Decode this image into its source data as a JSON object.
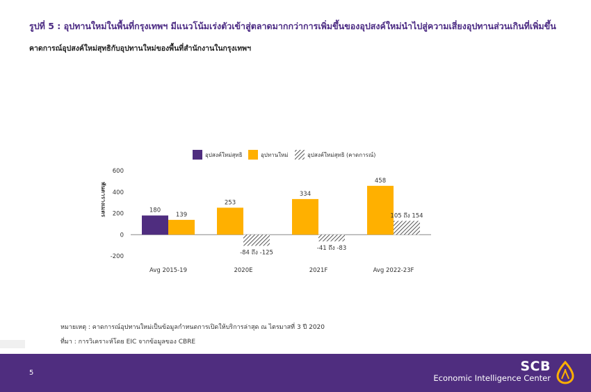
{
  "header": {
    "title": "รูปที่ 5 : อุปทานใหม่ในพื้นที่กรุงเทพฯ มีแนวโน้มเร่งตัวเข้าสู่ตลาดมากกว่าการเพิ่มขึ้นของอุปสงค์ใหม่นำไปสู่ความเสี่ยงอุปทานส่วนเกินที่เพิ่มขึ้น",
    "subtitle": "คาดการณ์อุปสงค์ใหม่สุทธิกับอุปทานใหม่ของพื้นที่สำนักงานในกรุงเทพฯ"
  },
  "chart_data": {
    "type": "bar",
    "categories": [
      "Avg 2015-19",
      "2020E",
      "2021F",
      "Avg 2022-23F"
    ],
    "ylabel": "พันตารางเมตร",
    "ylim": [
      -200,
      600
    ],
    "yticks": [
      -200,
      0,
      200,
      400,
      600
    ],
    "legend_position": "top",
    "legend": [
      "อุปสงค์ใหม่สุทธิ",
      "อุปทานใหม่",
      "อุปสงค์ใหม่สุทธิ (คาดการณ์)"
    ],
    "series": [
      {
        "name": "อุปสงค์ใหม่สุทธิ",
        "values": [
          180,
          null,
          null,
          null
        ],
        "color": "#4f2d7f"
      },
      {
        "name": "อุปทานใหม่",
        "values": [
          139,
          253,
          334,
          458
        ],
        "color": "#ffb000"
      },
      {
        "name": "อุปสงค์ใหม่สุทธิ (คาดการณ์)",
        "values": [
          null,
          -104.5,
          -62,
          129.5
        ],
        "ranges": [
          null,
          [
            -84,
            -125
          ],
          [
            -41,
            -83
          ],
          [
            105,
            154
          ]
        ],
        "pattern": "hatched"
      }
    ],
    "data_labels": [
      [
        "180",
        null,
        null,
        null
      ],
      [
        "139",
        "253",
        "334",
        "458"
      ],
      [
        null,
        "-84 ถึง -125",
        "-41 ถึง -83",
        "105 ถึง 154"
      ]
    ]
  },
  "notes": {
    "remark": "หมายเหตุ : คาดการณ์อุปทานใหม่เป็นข้อมูลกำหนดการเปิดให้บริการล่าสุด ณ ไตรมาสที่ 3 ปี 2020",
    "source": "ที่มา : การวิเคราะห์โดย EIC จากข้อมูลของ  CBRE"
  },
  "footer": {
    "page": "5",
    "brand": "SCB",
    "center": "Economic Intelligence Center",
    "bg_color": "#4f2d7f"
  }
}
